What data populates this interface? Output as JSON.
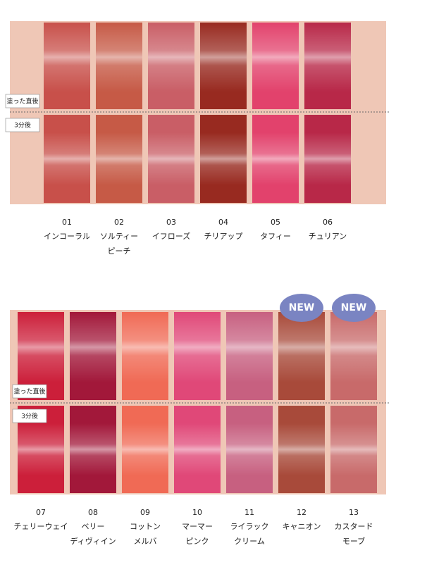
{
  "panels": [
    {
      "labels": [
        "塗った直後",
        "3分後"
      ],
      "swatches": [
        {
          "number": "01",
          "name": [
            "インコーラル"
          ],
          "color": "#c8504a"
        },
        {
          "number": "02",
          "name": [
            "ソルティー",
            "ピーチ"
          ],
          "color": "#c65a46"
        },
        {
          "number": "03",
          "name": [
            "イフローズ"
          ],
          "color": "#c95e66"
        },
        {
          "number": "04",
          "name": [
            "チリアップ"
          ],
          "color": "#982a20"
        },
        {
          "number": "05",
          "name": [
            "タフィー"
          ],
          "color": "#e2426c"
        },
        {
          "number": "06",
          "name": [
            "チュリアン"
          ],
          "color": "#b82848"
        }
      ]
    },
    {
      "labels": [
        "塗った直後",
        "3分後"
      ],
      "swatches": [
        {
          "number": "07",
          "name": [
            "チェリーウェイ"
          ],
          "color": "#cc1f3a"
        },
        {
          "number": "08",
          "name": [
            "ベリー",
            "ディヴィイン"
          ],
          "color": "#a2183a"
        },
        {
          "number": "09",
          "name": [
            "コットン",
            "メルバ"
          ],
          "color": "#f06a55"
        },
        {
          "number": "10",
          "name": [
            "マーマー",
            "ピンク"
          ],
          "color": "#e04878"
        },
        {
          "number": "11",
          "name": [
            "ライラック",
            "クリーム"
          ],
          "color": "#c76080"
        },
        {
          "number": "12",
          "name": [
            "キャニオン"
          ],
          "color": "#a84a3a",
          "badge": "NEW"
        },
        {
          "number": "13",
          "name": [
            "カスタード",
            "モーブ"
          ],
          "color": "#c86a6a",
          "badge": "NEW"
        }
      ]
    }
  ]
}
